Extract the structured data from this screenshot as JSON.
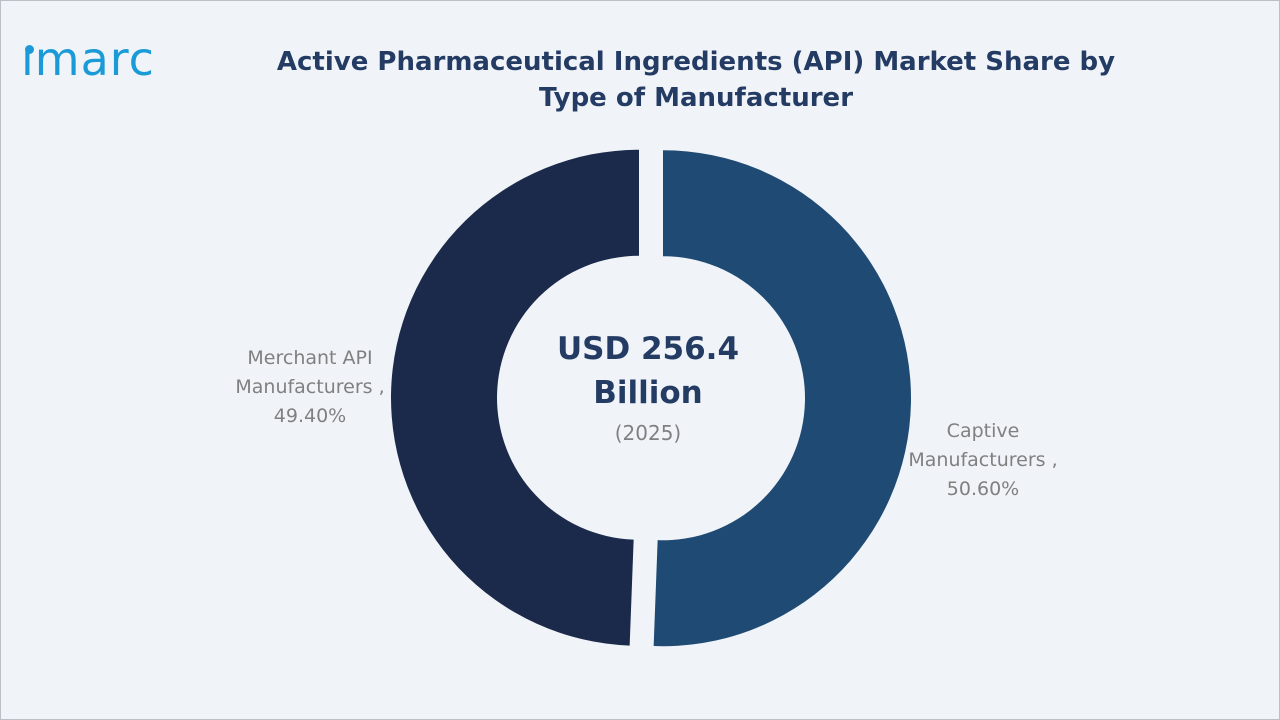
{
  "logo": {
    "text": "ımarc"
  },
  "colors": {
    "background": "#f0f4f9",
    "title": "#243b63",
    "label": "#808080",
    "logo": "#1a9bd7"
  },
  "chart_data": {
    "type": "pie",
    "donut": true,
    "title": "Active Pharmaceutical Ingredients (API) Market Share by Type of Manufacturer",
    "center": {
      "amount": "USD 256.4 Billion",
      "year": "(2025)"
    },
    "slices": [
      {
        "name": "Captive Manufacturers ,",
        "value": 50.6,
        "value_label": "50.60%",
        "color": "#1e4a73"
      },
      {
        "name": "Merchant API Manufacturers ,",
        "value": 49.4,
        "value_label": "49.40%",
        "color": "#1b2a4a"
      }
    ],
    "legend": "none"
  }
}
